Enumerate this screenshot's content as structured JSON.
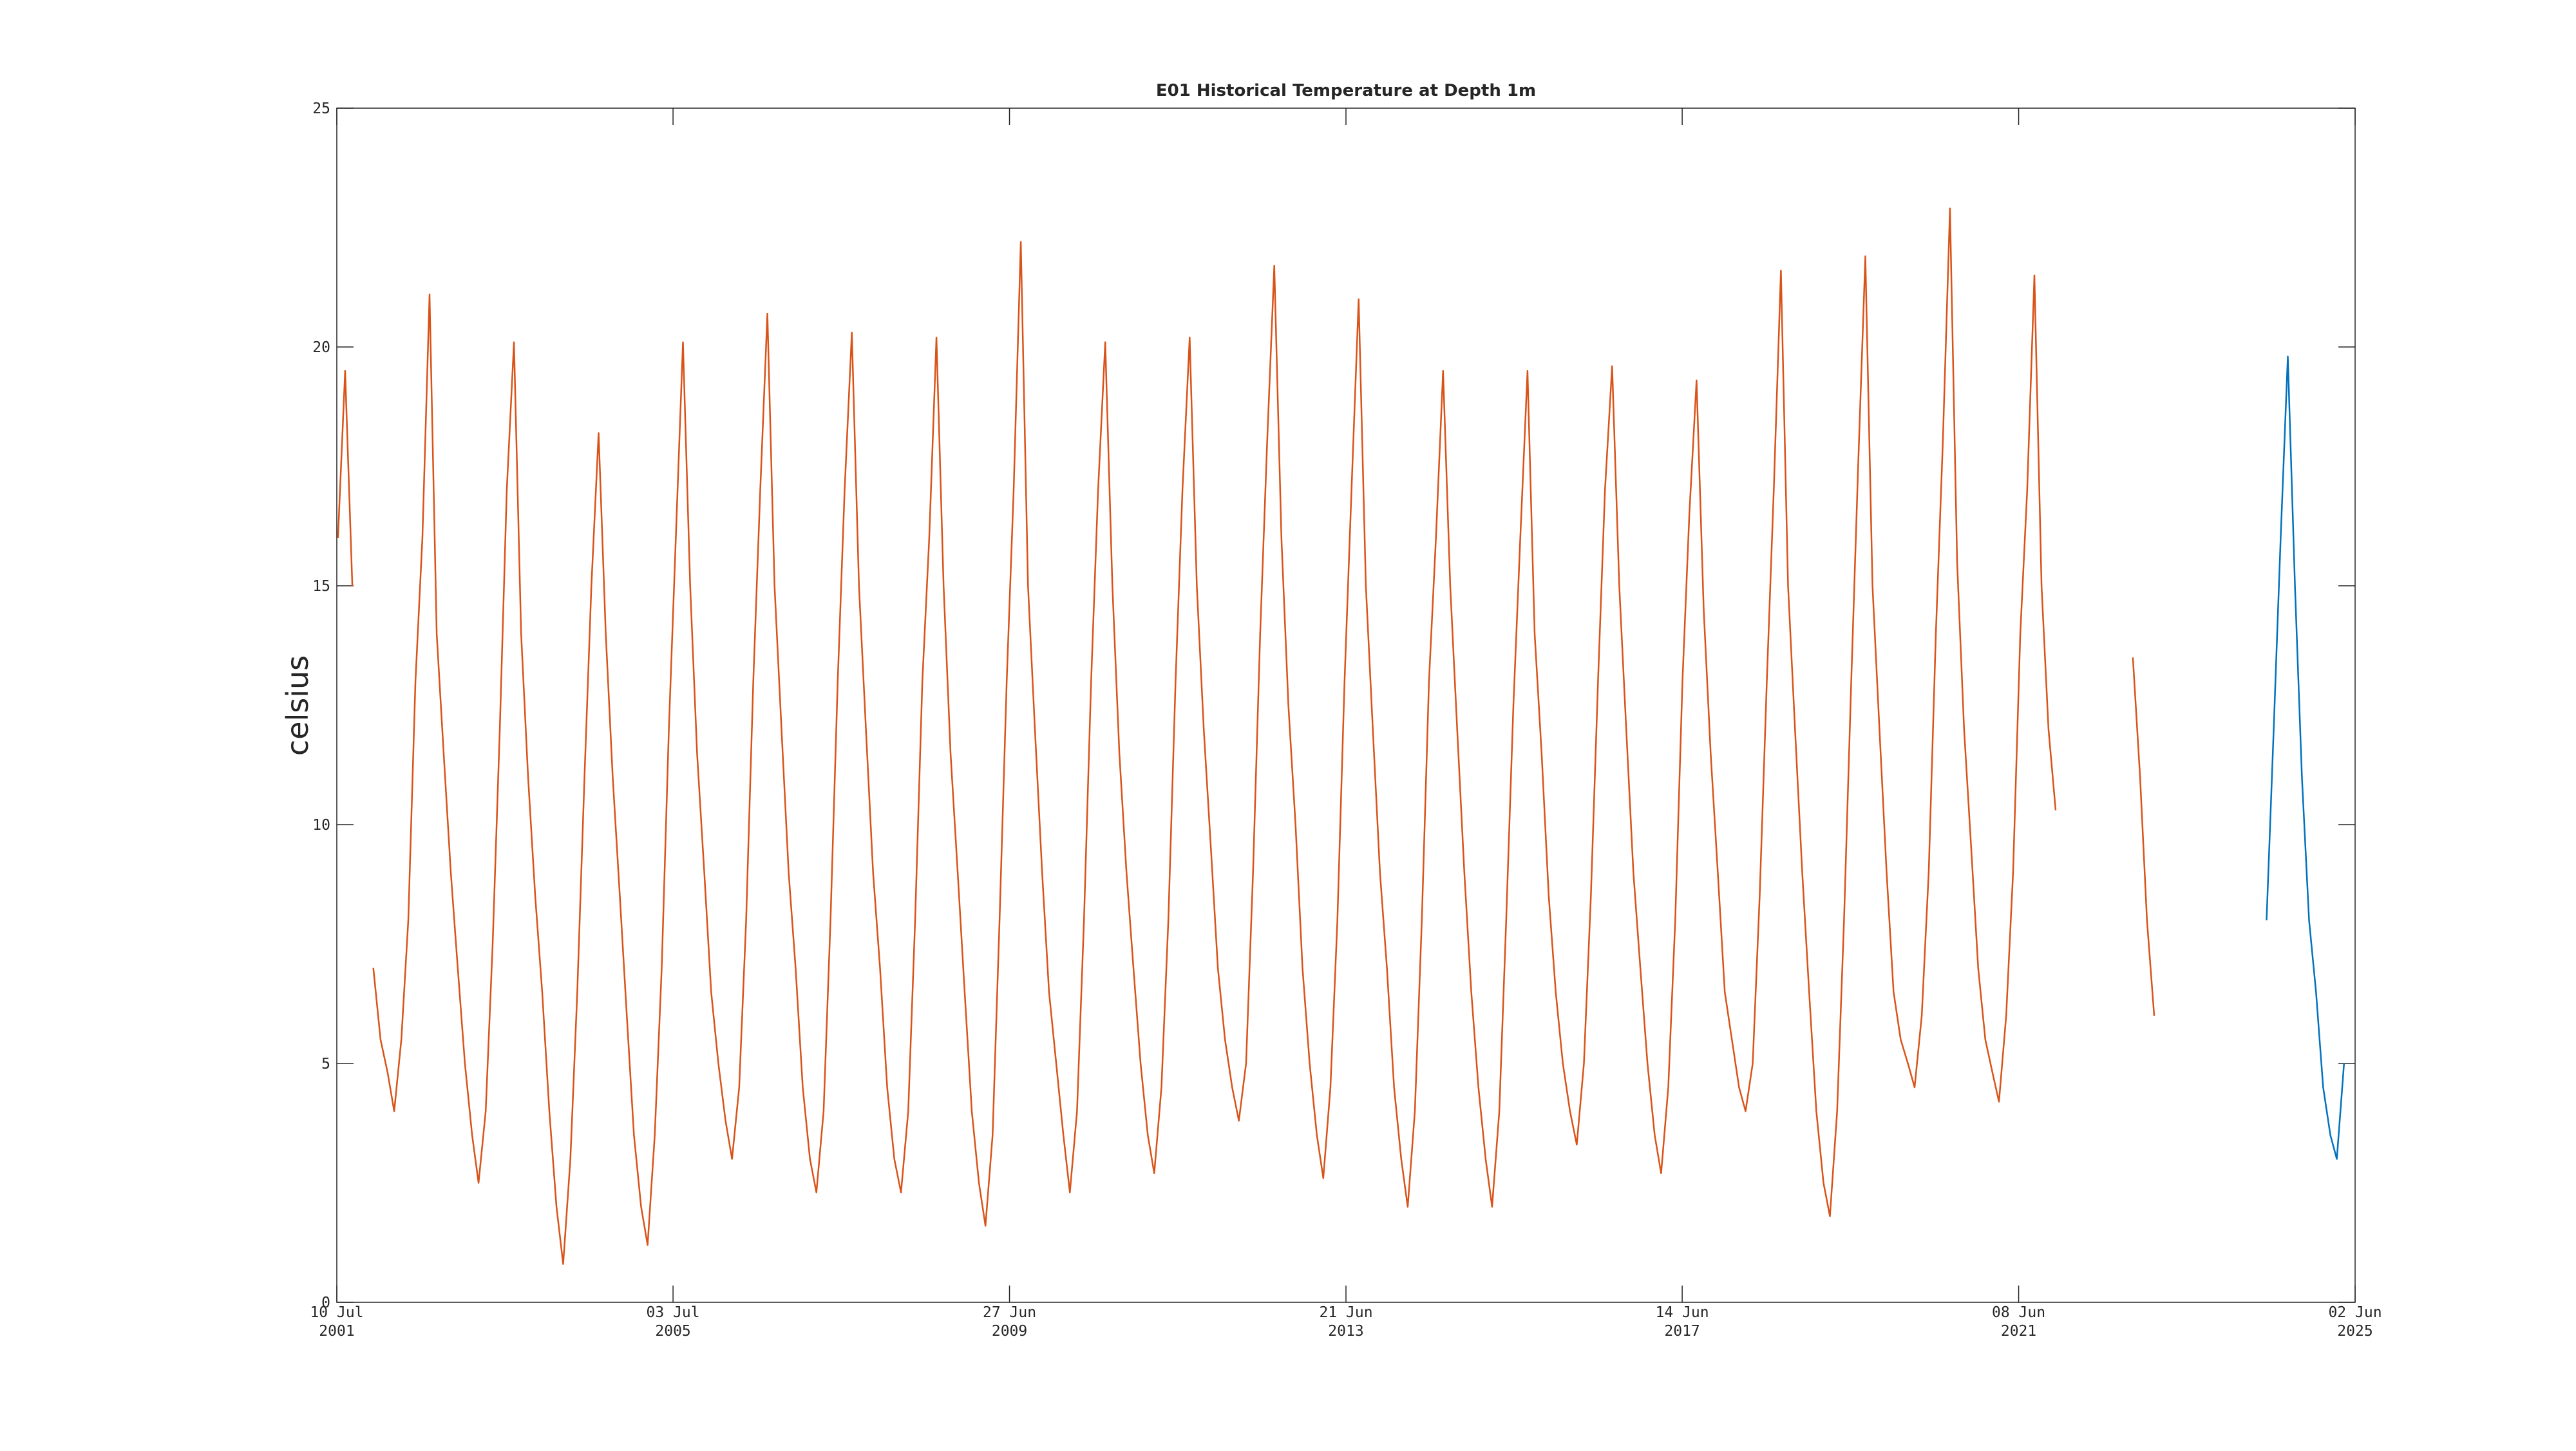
{
  "chart_data": {
    "type": "line",
    "title": "E01 Historical Temperature at Depth 1m",
    "y_label": "celsius",
    "xlim": [
      "2001-07-10",
      "2025-06-02"
    ],
    "ylim": [
      0,
      25
    ],
    "yticks": [
      0,
      5,
      10,
      15,
      20,
      25
    ],
    "xticks": [
      {
        "value": "2001-07-10",
        "label": [
          "10 Jul",
          "2001"
        ]
      },
      {
        "value": "2005-07-03",
        "label": [
          "03 Jul",
          "2005"
        ]
      },
      {
        "value": "2009-06-27",
        "label": [
          "27 Jun",
          "2009"
        ]
      },
      {
        "value": "2013-06-21",
        "label": [
          "21 Jun",
          "2013"
        ]
      },
      {
        "value": "2017-06-14",
        "label": [
          "14 Jun",
          "2017"
        ]
      },
      {
        "value": "2021-06-08",
        "label": [
          "08 Jun",
          "2021"
        ]
      },
      {
        "value": "2025-06-02",
        "label": [
          "02 Jun",
          "2025"
        ]
      }
    ],
    "grid": false,
    "series": [
      {
        "color": "#d95319",
        "x": [
          "2001-07-15",
          "2001-08-15",
          "2001-09-15",
          "2001-10-15",
          "2001-11-15",
          "2001-12-15",
          "2002-01-15",
          "2002-02-15",
          "2002-03-15",
          "2002-04-15",
          "2002-05-15",
          "2002-06-15",
          "2002-07-15",
          "2002-08-15",
          "2002-09-15",
          "2002-10-15",
          "2002-11-15",
          "2002-12-15",
          "2003-01-15",
          "2003-02-15",
          "2003-03-15",
          "2003-04-15",
          "2003-05-15",
          "2003-06-15",
          "2003-07-15",
          "2003-08-15",
          "2003-09-15",
          "2003-10-15",
          "2003-11-15",
          "2003-12-15",
          "2004-01-15",
          "2004-02-15",
          "2004-03-15",
          "2004-04-15",
          "2004-05-15",
          "2004-06-15",
          "2004-07-15",
          "2004-08-15",
          "2004-09-15",
          "2004-10-15",
          "2004-11-15",
          "2004-12-15",
          "2005-01-15",
          "2005-02-15",
          "2005-03-15",
          "2005-04-15",
          "2005-05-15",
          "2005-06-15",
          "2005-07-15",
          "2005-08-15",
          "2005-09-15",
          "2005-10-15",
          "2005-11-15",
          "2005-12-15",
          "2006-01-15",
          "2006-02-15",
          "2006-03-15",
          "2006-04-15",
          "2006-05-15",
          "2006-06-15",
          "2006-07-15",
          "2006-08-15",
          "2006-09-15",
          "2006-10-15",
          "2006-11-15",
          "2006-12-15",
          "2007-01-15",
          "2007-02-15",
          "2007-03-15",
          "2007-04-15",
          "2007-05-15",
          "2007-06-15",
          "2007-07-15",
          "2007-08-15",
          "2007-09-15",
          "2007-10-15",
          "2007-11-15",
          "2007-12-15",
          "2008-01-15",
          "2008-02-15",
          "2008-03-15",
          "2008-04-15",
          "2008-05-15",
          "2008-06-15",
          "2008-07-15",
          "2008-08-15",
          "2008-09-15",
          "2008-10-15",
          "2008-11-15",
          "2008-12-15",
          "2009-01-15",
          "2009-02-15",
          "2009-03-15",
          "2009-04-15",
          "2009-05-15",
          "2009-06-15",
          "2009-07-15",
          "2009-08-15",
          "2009-09-15",
          "2009-10-15",
          "2009-11-15",
          "2009-12-15",
          "2010-01-15",
          "2010-02-15",
          "2010-03-15",
          "2010-04-15",
          "2010-05-15",
          "2010-06-15",
          "2010-07-15",
          "2010-08-15",
          "2010-09-15",
          "2010-10-15",
          "2010-11-15",
          "2010-12-15",
          "2011-01-15",
          "2011-02-15",
          "2011-03-15",
          "2011-04-15",
          "2011-05-15",
          "2011-06-15",
          "2011-07-15",
          "2011-08-15",
          "2011-09-15",
          "2011-10-15",
          "2011-11-15",
          "2011-12-15",
          "2012-01-15",
          "2012-02-15",
          "2012-03-15",
          "2012-04-15",
          "2012-05-15",
          "2012-06-15",
          "2012-07-15",
          "2012-08-15",
          "2012-09-15",
          "2012-10-15",
          "2012-11-15",
          "2012-12-15",
          "2013-01-15",
          "2013-02-15",
          "2013-03-15",
          "2013-04-15",
          "2013-05-15",
          "2013-06-15",
          "2013-07-15",
          "2013-08-15",
          "2013-09-15",
          "2013-10-15",
          "2013-11-15",
          "2013-12-15",
          "2014-01-15",
          "2014-02-15",
          "2014-03-15",
          "2014-04-15",
          "2014-05-15",
          "2014-06-15",
          "2014-07-15",
          "2014-08-15",
          "2014-09-15",
          "2014-10-15",
          "2014-11-15",
          "2014-12-15",
          "2015-01-15",
          "2015-02-15",
          "2015-03-15",
          "2015-04-15",
          "2015-05-15",
          "2015-06-15",
          "2015-07-15",
          "2015-08-15",
          "2015-09-15",
          "2015-10-15",
          "2015-11-15",
          "2015-12-15",
          "2016-01-15",
          "2016-02-15",
          "2016-03-15",
          "2016-04-15",
          "2016-05-15",
          "2016-06-15",
          "2016-07-15",
          "2016-08-15",
          "2016-09-15",
          "2016-10-15",
          "2016-11-15",
          "2016-12-15",
          "2017-01-15",
          "2017-02-15",
          "2017-03-15",
          "2017-04-15",
          "2017-05-15",
          "2017-06-15",
          "2017-07-15",
          "2017-08-15",
          "2017-09-15",
          "2017-10-15",
          "2017-11-15",
          "2017-12-15",
          "2018-01-15",
          "2018-02-15",
          "2018-03-15",
          "2018-04-15",
          "2018-05-15",
          "2018-06-15",
          "2018-07-15",
          "2018-08-15",
          "2018-09-15",
          "2018-10-15",
          "2018-11-15",
          "2018-12-15",
          "2019-01-15",
          "2019-02-15",
          "2019-03-15",
          "2019-04-15",
          "2019-05-15",
          "2019-06-15",
          "2019-07-15",
          "2019-08-15",
          "2019-09-15",
          "2019-10-15",
          "2019-11-15",
          "2019-12-15",
          "2020-01-15",
          "2020-02-15",
          "2020-03-15",
          "2020-04-15",
          "2020-05-15",
          "2020-06-15",
          "2020-07-15",
          "2020-08-15",
          "2020-09-15",
          "2020-10-15",
          "2020-11-15",
          "2020-12-15",
          "2021-01-15",
          "2021-02-15",
          "2021-03-15",
          "2021-04-15",
          "2021-05-15",
          "2021-06-15",
          "2021-07-15",
          "2021-08-15",
          "2021-09-15",
          "2021-10-15",
          "2021-11-15",
          "2021-12-15",
          "2022-01-15",
          "2022-02-15",
          "2022-03-15",
          "2022-04-15",
          "2022-05-15",
          "2022-06-15",
          "2022-07-15",
          "2022-08-15",
          "2022-09-15",
          "2022-10-15",
          "2022-11-15",
          "2022-12-15",
          "2023-01-15"
        ],
        "values": [
          16,
          19.5,
          15,
          null,
          null,
          7,
          5.5,
          4.8,
          4,
          5.5,
          8,
          13,
          16,
          21.1,
          14,
          11.5,
          9,
          7,
          5,
          3.5,
          2.5,
          4,
          7.5,
          12,
          17,
          20.1,
          14,
          11,
          8.5,
          6.5,
          4,
          2,
          0.8,
          3,
          6.5,
          11,
          15,
          18.2,
          14,
          11,
          8.5,
          6,
          3.5,
          2,
          1.2,
          3.5,
          7,
          12,
          16,
          20.1,
          15,
          11.5,
          9,
          6.5,
          5,
          3.8,
          3,
          4.5,
          8,
          13,
          17,
          20.7,
          15,
          12,
          9,
          7,
          4.5,
          3,
          2.3,
          4,
          8,
          13,
          17,
          20.3,
          15,
          12,
          9,
          7,
          4.5,
          3,
          2.3,
          4,
          8,
          13,
          16,
          20.2,
          15,
          11.5,
          9,
          6.5,
          4,
          2.5,
          1.6,
          3.5,
          8,
          13,
          17,
          22.2,
          15,
          12,
          9,
          6.5,
          5,
          3.5,
          2.3,
          4,
          8,
          13,
          17,
          20.1,
          15,
          11.5,
          9,
          7,
          5,
          3.5,
          2.7,
          4.5,
          8,
          13,
          17,
          20.2,
          15,
          12,
          9.5,
          7,
          5.5,
          4.5,
          3.8,
          5,
          9,
          14,
          18,
          21.7,
          16,
          12.5,
          10,
          7,
          5,
          3.5,
          2.6,
          4.5,
          8,
          13,
          17,
          21,
          15,
          12,
          9,
          7,
          4.5,
          3,
          2,
          4,
          8,
          13,
          16,
          19.5,
          15,
          12,
          9,
          6.5,
          4.5,
          3,
          2,
          4,
          8,
          12.5,
          16,
          19.5,
          14,
          11.5,
          8.5,
          6.5,
          5,
          4,
          3.3,
          5,
          8.5,
          13,
          17,
          19.6,
          15,
          12,
          9,
          7,
          5,
          3.5,
          2.7,
          4.5,
          8,
          13,
          16.5,
          19.3,
          14.5,
          11.5,
          9,
          6.5,
          5.5,
          4.5,
          4,
          5,
          8.5,
          13,
          17,
          21.6,
          15,
          12,
          9,
          6.5,
          4,
          2.5,
          1.8,
          4,
          8,
          13,
          17.5,
          21.9,
          15,
          12,
          9,
          6.5,
          5.5,
          5,
          4.5,
          6,
          9,
          14,
          18,
          22.9,
          15.5,
          12,
          9.5,
          7,
          5.5,
          4.8,
          4.2,
          6,
          9,
          14,
          17,
          21.5,
          15,
          12,
          10.3,
          null,
          null,
          null,
          null,
          null,
          null,
          null,
          null,
          null,
          null,
          13.5,
          11,
          8,
          6
        ]
      },
      {
        "color": "#0072bd",
        "x": [
          "2024-05-15",
          "2024-06-15",
          "2024-07-15",
          "2024-08-15",
          "2024-09-15",
          "2024-10-15",
          "2024-11-15",
          "2024-12-15",
          "2025-01-15",
          "2025-02-15",
          "2025-03-15",
          "2025-04-15"
        ],
        "values": [
          8,
          12,
          16,
          19.8,
          15,
          11,
          8,
          6.5,
          4.5,
          3.5,
          3,
          5
        ]
      }
    ]
  }
}
